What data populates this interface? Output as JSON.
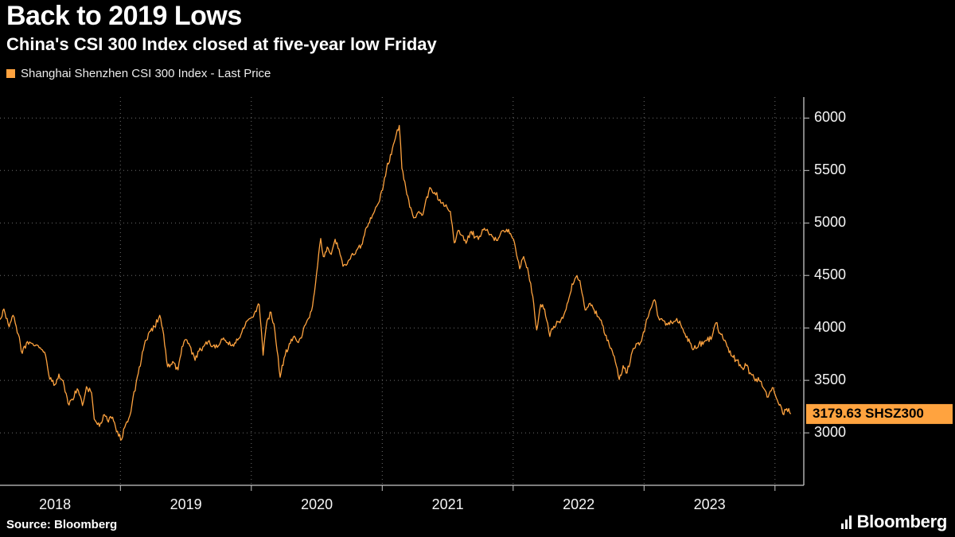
{
  "header": {
    "title": "Back to 2019 Lows",
    "subtitle": "China's CSI 300 Index closed at five-year low Friday"
  },
  "footer": {
    "source": "Source: Bloomberg",
    "brand": "Bloomberg"
  },
  "chart_data": {
    "type": "line",
    "title": "Back to 2019 Lows",
    "subtitle": "China's CSI 300 Index closed at five-year low Friday",
    "legend": [
      {
        "label": "Shanghai Shenzhen CSI 300 Index - Last Price",
        "color": "#FFA33F"
      }
    ],
    "colors": {
      "line": "#FFA33F",
      "badge_bg": "#FFA33F",
      "badge_text": "#000000",
      "axis": "#c8c8c8",
      "grid": "#6e6e6e",
      "tick_label": "#f5f5f5"
    },
    "x": {
      "range": [
        2018.08,
        2024.22
      ],
      "tick_label_years": [
        2018,
        2019,
        2020,
        2021,
        2022,
        2023
      ],
      "grid_years": [
        2019,
        2020,
        2021,
        2022,
        2023,
        2024
      ]
    },
    "y": {
      "range": [
        2500,
        6200
      ],
      "ticks": [
        3000,
        3500,
        4000,
        4500,
        5000,
        5500,
        6000
      ]
    },
    "grid": "dotted",
    "legend_position": "top-left",
    "last_price": {
      "value": 3179.63,
      "label": "3179.63 SHSZ300"
    },
    "series": [
      {
        "name": "Shanghai Shenzhen CSI 300 Index - Last Price",
        "color": "#FFA33F",
        "points": [
          [
            2018.08,
            4080
          ],
          [
            2018.11,
            4180
          ],
          [
            2018.15,
            4010
          ],
          [
            2018.18,
            4120
          ],
          [
            2018.22,
            3940
          ],
          [
            2018.25,
            3757
          ],
          [
            2018.29,
            3870
          ],
          [
            2018.33,
            3850
          ],
          [
            2018.38,
            3810
          ],
          [
            2018.42,
            3770
          ],
          [
            2018.46,
            3510
          ],
          [
            2018.5,
            3460
          ],
          [
            2018.53,
            3560
          ],
          [
            2018.57,
            3450
          ],
          [
            2018.6,
            3280
          ],
          [
            2018.63,
            3320
          ],
          [
            2018.67,
            3420
          ],
          [
            2018.71,
            3260
          ],
          [
            2018.74,
            3440
          ],
          [
            2018.78,
            3380
          ],
          [
            2018.8,
            3130
          ],
          [
            2018.84,
            3060
          ],
          [
            2018.87,
            3170
          ],
          [
            2018.9,
            3120
          ],
          [
            2018.94,
            3150
          ],
          [
            2018.97,
            3010
          ],
          [
            2019.01,
            2940
          ],
          [
            2019.04,
            3080
          ],
          [
            2019.08,
            3200
          ],
          [
            2019.12,
            3480
          ],
          [
            2019.16,
            3700
          ],
          [
            2019.19,
            3880
          ],
          [
            2019.23,
            3970
          ],
          [
            2019.26,
            4010
          ],
          [
            2019.3,
            4120
          ],
          [
            2019.33,
            3940
          ],
          [
            2019.36,
            3630
          ],
          [
            2019.4,
            3680
          ],
          [
            2019.44,
            3600
          ],
          [
            2019.47,
            3820
          ],
          [
            2019.5,
            3890
          ],
          [
            2019.53,
            3830
          ],
          [
            2019.57,
            3690
          ],
          [
            2019.6,
            3780
          ],
          [
            2019.63,
            3820
          ],
          [
            2019.67,
            3870
          ],
          [
            2019.7,
            3820
          ],
          [
            2019.74,
            3815
          ],
          [
            2019.78,
            3890
          ],
          [
            2019.81,
            3860
          ],
          [
            2019.85,
            3830
          ],
          [
            2019.88,
            3855
          ],
          [
            2019.92,
            3935
          ],
          [
            2019.96,
            4060
          ],
          [
            2020.0,
            4097
          ],
          [
            2020.03,
            4160
          ],
          [
            2020.06,
            4222
          ],
          [
            2020.09,
            3740
          ],
          [
            2020.12,
            4070
          ],
          [
            2020.15,
            4150
          ],
          [
            2020.18,
            3970
          ],
          [
            2020.22,
            3530
          ],
          [
            2020.25,
            3714
          ],
          [
            2020.29,
            3850
          ],
          [
            2020.32,
            3912
          ],
          [
            2020.36,
            3860
          ],
          [
            2020.39,
            3935
          ],
          [
            2020.42,
            4050
          ],
          [
            2020.46,
            4164
          ],
          [
            2020.49,
            4419
          ],
          [
            2020.53,
            4852
          ],
          [
            2020.55,
            4680
          ],
          [
            2020.58,
            4771
          ],
          [
            2020.61,
            4700
          ],
          [
            2020.64,
            4844
          ],
          [
            2020.67,
            4750
          ],
          [
            2020.7,
            4587
          ],
          [
            2020.74,
            4640
          ],
          [
            2020.78,
            4695
          ],
          [
            2020.81,
            4750
          ],
          [
            2020.84,
            4790
          ],
          [
            2020.88,
            4960
          ],
          [
            2020.91,
            5050
          ],
          [
            2020.95,
            5150
          ],
          [
            2020.98,
            5211
          ],
          [
            2021.01,
            5368
          ],
          [
            2021.04,
            5570
          ],
          [
            2021.07,
            5650
          ],
          [
            2021.1,
            5807
          ],
          [
            2021.13,
            5930
          ],
          [
            2021.15,
            5520
          ],
          [
            2021.18,
            5336
          ],
          [
            2021.21,
            5150
          ],
          [
            2021.24,
            5048
          ],
          [
            2021.28,
            5110
          ],
          [
            2021.31,
            5078
          ],
          [
            2021.34,
            5250
          ],
          [
            2021.37,
            5331
          ],
          [
            2021.4,
            5290
          ],
          [
            2021.44,
            5224
          ],
          [
            2021.48,
            5160
          ],
          [
            2021.52,
            5110
          ],
          [
            2021.55,
            4811
          ],
          [
            2021.58,
            4930
          ],
          [
            2021.61,
            4880
          ],
          [
            2021.64,
            4806
          ],
          [
            2021.68,
            4920
          ],
          [
            2021.71,
            4866
          ],
          [
            2021.75,
            4870
          ],
          [
            2021.78,
            4950
          ],
          [
            2021.81,
            4908
          ],
          [
            2021.84,
            4870
          ],
          [
            2021.88,
            4832
          ],
          [
            2021.91,
            4920
          ],
          [
            2021.95,
            4940
          ],
          [
            2021.98,
            4900
          ],
          [
            2022.01,
            4810
          ],
          [
            2022.05,
            4563
          ],
          [
            2022.08,
            4680
          ],
          [
            2022.11,
            4574
          ],
          [
            2022.15,
            4300
          ],
          [
            2022.18,
            3980
          ],
          [
            2022.21,
            4223
          ],
          [
            2022.24,
            4180
          ],
          [
            2022.28,
            3918
          ],
          [
            2022.31,
            4016
          ],
          [
            2022.35,
            4060
          ],
          [
            2022.38,
            4091
          ],
          [
            2022.42,
            4250
          ],
          [
            2022.45,
            4420
          ],
          [
            2022.48,
            4485
          ],
          [
            2022.51,
            4450
          ],
          [
            2022.55,
            4170
          ],
          [
            2022.58,
            4230
          ],
          [
            2022.61,
            4190
          ],
          [
            2022.65,
            4107
          ],
          [
            2022.68,
            4030
          ],
          [
            2022.71,
            3930
          ],
          [
            2022.75,
            3805
          ],
          [
            2022.78,
            3680
          ],
          [
            2022.81,
            3508
          ],
          [
            2022.84,
            3640
          ],
          [
            2022.87,
            3570
          ],
          [
            2022.91,
            3775
          ],
          [
            2022.94,
            3850
          ],
          [
            2022.98,
            3872
          ],
          [
            2023.01,
            4020
          ],
          [
            2023.05,
            4181
          ],
          [
            2023.08,
            4268
          ],
          [
            2023.11,
            4100
          ],
          [
            2023.15,
            4069
          ],
          [
            2023.18,
            4030
          ],
          [
            2023.21,
            4051
          ],
          [
            2023.25,
            4090
          ],
          [
            2023.28,
            4029
          ],
          [
            2023.32,
            3910
          ],
          [
            2023.35,
            3860
          ],
          [
            2023.38,
            3799
          ],
          [
            2023.42,
            3850
          ],
          [
            2023.45,
            3842
          ],
          [
            2023.48,
            3880
          ],
          [
            2023.52,
            3920
          ],
          [
            2023.55,
            4050
          ],
          [
            2023.58,
            3950
          ],
          [
            2023.61,
            3880
          ],
          [
            2023.65,
            3765
          ],
          [
            2023.68,
            3720
          ],
          [
            2023.71,
            3690
          ],
          [
            2023.75,
            3620
          ],
          [
            2023.78,
            3640
          ],
          [
            2023.81,
            3572
          ],
          [
            2023.84,
            3520
          ],
          [
            2023.88,
            3496
          ],
          [
            2023.91,
            3430
          ],
          [
            2023.94,
            3340
          ],
          [
            2023.98,
            3431
          ],
          [
            2024.01,
            3330
          ],
          [
            2024.04,
            3270
          ],
          [
            2024.06,
            3180
          ],
          [
            2024.09,
            3230
          ],
          [
            2024.12,
            3179.63
          ]
        ]
      }
    ],
    "source": "Source: Bloomberg",
    "brand": "Bloomberg"
  }
}
